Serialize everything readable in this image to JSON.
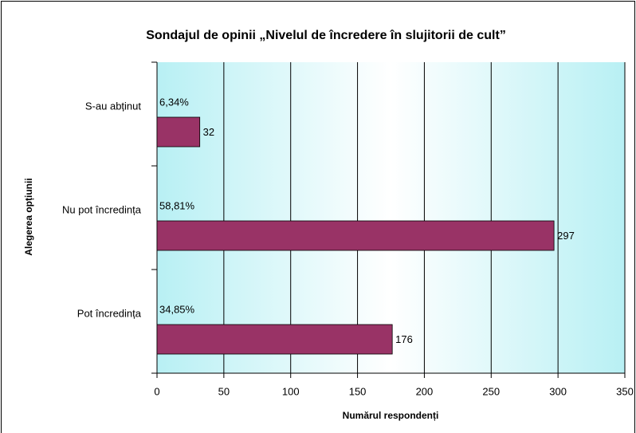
{
  "chart_data": {
    "type": "bar",
    "orientation": "horizontal",
    "title": "Sondajul de opinii „Nivelul de încredere în slujitorii de cult”",
    "x_label": "Numărul respondenți",
    "y_label": "Alegerea opțiunii",
    "categories": [
      "S-au abținut",
      "Nu pot încredința",
      "Pot încredința"
    ],
    "values": [
      32,
      297,
      176
    ],
    "percent_labels": [
      "6,34%",
      "58,81%",
      "34,85%"
    ],
    "color": "#993366",
    "xlim": [
      0,
      350
    ],
    "xticks": [
      0,
      50,
      100,
      150,
      200,
      250,
      300,
      350
    ],
    "grid": true
  }
}
